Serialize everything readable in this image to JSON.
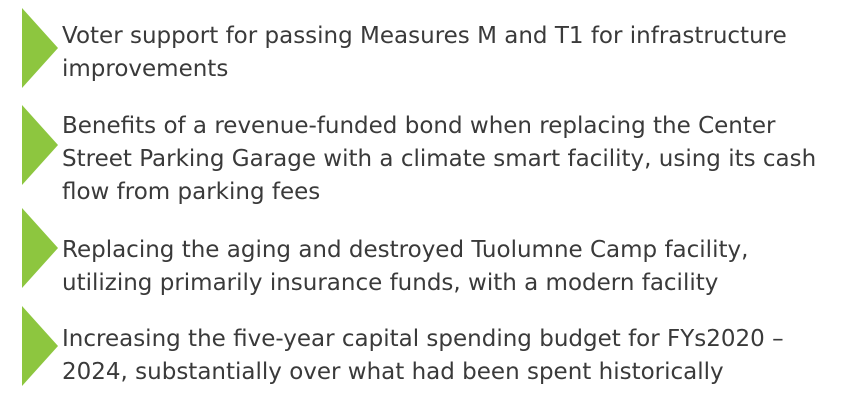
{
  "items": [
    {
      "text": "Voter support for passing Measures M and T1 for infrastructure improvements"
    },
    {
      "text": "Benefits of a revenue-funded bond when replacing the Center Street Parking Garage with a climate smart facility, using its cash flow from parking fees"
    },
    {
      "text": "Replacing the aging and destroyed Tuolumne Camp facility, utilizing primarily insurance funds, with a modern facility"
    },
    {
      "text": "Increasing the five-year capital spending budget for FYs2020 – 2024, substantially over what had been spent historically"
    }
  ]
}
